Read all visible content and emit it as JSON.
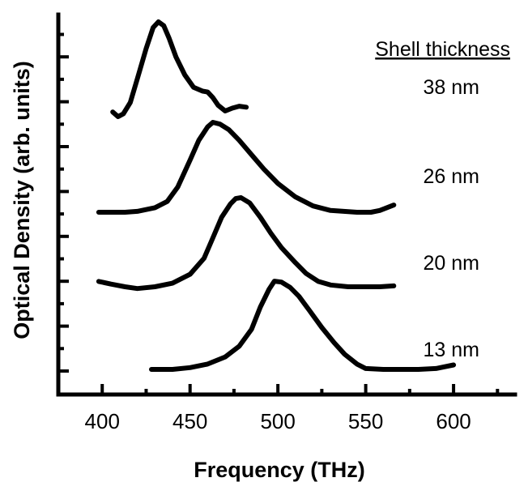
{
  "chart_data": {
    "type": "line",
    "xlabel": "Frequency (THz)",
    "ylabel": "Optical Density (arb. units)",
    "xlim": [
      375,
      635
    ],
    "x_ticks": [
      "400",
      "450",
      "500",
      "550",
      "600"
    ],
    "y_ticks": "unlabeled",
    "legend_title": "Shell thickness",
    "legend_placement": "top-right",
    "grid": false,
    "series": [
      {
        "name": "13 nm",
        "x": [
          428,
          440,
          450,
          460,
          470,
          478,
          485,
          490,
          495,
          498,
          502,
          507,
          512,
          518,
          525,
          532,
          538,
          545,
          550,
          560,
          570,
          580,
          590,
          600
        ],
        "y": [
          0.0,
          0.0,
          0.02,
          0.06,
          0.14,
          0.26,
          0.45,
          0.7,
          0.9,
          0.99,
          0.98,
          0.92,
          0.82,
          0.66,
          0.47,
          0.3,
          0.17,
          0.06,
          0.01,
          0.0,
          0.0,
          0.0,
          0.01,
          0.05
        ]
      },
      {
        "name": "20 nm",
        "x": [
          398,
          405,
          413,
          420,
          430,
          440,
          450,
          458,
          463,
          468,
          473,
          476,
          479,
          484,
          490,
          496,
          502,
          510,
          516,
          523,
          530,
          540,
          550,
          558,
          566
        ],
        "y": [
          0.06,
          0.03,
          0.0,
          -0.02,
          0.0,
          0.04,
          0.14,
          0.32,
          0.55,
          0.78,
          0.93,
          0.99,
          1.0,
          0.94,
          0.78,
          0.6,
          0.44,
          0.27,
          0.15,
          0.06,
          0.02,
          0.0,
          0.0,
          0.0,
          0.01
        ]
      },
      {
        "name": "26 nm",
        "x": [
          398,
          405,
          413,
          420,
          430,
          437,
          443,
          450,
          455,
          460,
          463,
          467,
          472,
          478,
          485,
          492,
          500,
          510,
          520,
          530,
          545,
          553,
          558,
          566
        ],
        "y": [
          0.0,
          0.0,
          0.0,
          0.01,
          0.05,
          0.12,
          0.28,
          0.58,
          0.8,
          0.95,
          1.0,
          0.98,
          0.92,
          0.8,
          0.64,
          0.48,
          0.32,
          0.17,
          0.07,
          0.02,
          0.0,
          0.0,
          0.02,
          0.08
        ]
      },
      {
        "name": "38 nm",
        "x": [
          406,
          409,
          412,
          416,
          420,
          425,
          429,
          432,
          435,
          438,
          442,
          447,
          452,
          457,
          460,
          463,
          466,
          470,
          474,
          478,
          482
        ],
        "y": [
          0.05,
          0.0,
          0.03,
          0.15,
          0.4,
          0.72,
          0.94,
          1.0,
          0.96,
          0.83,
          0.63,
          0.44,
          0.31,
          0.27,
          0.26,
          0.2,
          0.12,
          0.06,
          0.09,
          0.11,
          0.1
        ]
      }
    ]
  }
}
